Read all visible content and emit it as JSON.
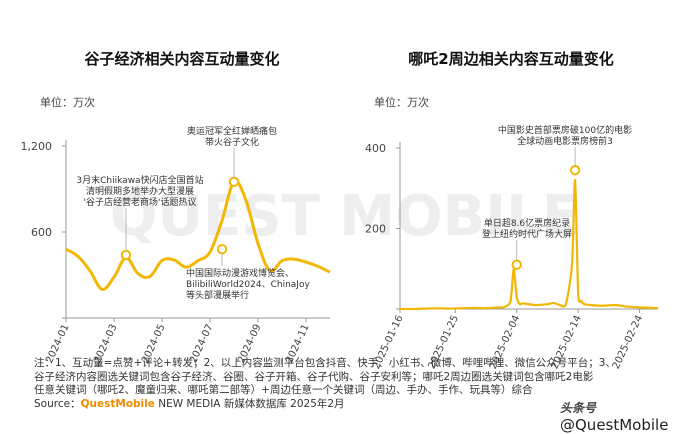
{
  "colors": {
    "line": "#f2b705",
    "axis": "#9a9a9a",
    "annotation": "#333333",
    "brand": "#f08a00",
    "watermark": "#eeeeee"
  },
  "chart_data": [
    {
      "type": "line",
      "title": "谷子经济相关内容互动量变化",
      "unit_label": "单位：万次",
      "ylim": [
        0,
        1200
      ],
      "y_ticks": [
        0,
        600,
        1200
      ],
      "y_tick_labels": [
        "",
        "600",
        "1,200"
      ],
      "x_tick_labels": [
        "2024-01",
        "2024-03",
        "2024-05",
        "2024-07",
        "2024-09",
        "2024-11"
      ],
      "x_tick_positions": [
        0,
        2,
        4,
        6,
        8,
        10
      ],
      "x": [
        0,
        0.5,
        1,
        1.5,
        2,
        2.5,
        3,
        3.5,
        4,
        4.5,
        5,
        5.5,
        6,
        6.5,
        7,
        7.5,
        8,
        8.5,
        9,
        9.5,
        10,
        10.5,
        11
      ],
      "values": [
        480,
        430,
        330,
        200,
        285,
        420,
        310,
        290,
        400,
        405,
        355,
        400,
        460,
        680,
        950,
        820,
        520,
        330,
        400,
        410,
        390,
        360,
        320
      ],
      "annotations": [
        {
          "x": 2.5,
          "y": 440,
          "text": [
            "3月末Chiikawa快闪店全国首站",
            "清明假期多地举办大型漫展",
            "'谷子店经营老商场'话题热议"
          ]
        },
        {
          "x": 7,
          "y": 950,
          "text": [
            "奥运冠军全红婵晒痛包",
            "带火谷子文化"
          ]
        },
        {
          "x": 6.5,
          "y": 480,
          "text": [
            "中国国际动漫游戏博览会、",
            "BilibiliWorld2024、ChinaJoy",
            "等头部漫展举行"
          ]
        }
      ],
      "grid": false
    },
    {
      "type": "line",
      "title": "哪吒2周边相关内容互动量变化",
      "unit_label": "单位：万次",
      "ylim": [
        0,
        400
      ],
      "y_ticks": [
        0,
        200,
        400
      ],
      "y_tick_labels": [
        "",
        "200",
        "400"
      ],
      "x_tick_labels": [
        "2025-01-16",
        "2025-01-25",
        "2025-02-04",
        "2025-02-14",
        "2025-02-24"
      ],
      "x_tick_positions": [
        0,
        9,
        19,
        29,
        39
      ],
      "x": [
        0,
        2,
        4,
        6,
        8,
        10,
        12,
        14,
        16,
        17,
        18,
        18.5,
        19,
        19.5,
        20,
        22,
        24,
        25,
        26,
        27,
        28,
        28.5,
        29,
        29.5,
        30,
        31,
        33,
        35,
        37,
        39,
        41,
        42
      ],
      "values": [
        0,
        0,
        1,
        2,
        1,
        2,
        3,
        2,
        4,
        5,
        20,
        100,
        30,
        12,
        14,
        10,
        12,
        15,
        10,
        12,
        110,
        320,
        40,
        20,
        12,
        10,
        8,
        10,
        6,
        4,
        3,
        2
      ],
      "annotations": [
        {
          "x": 19,
          "y": 110,
          "text": [
            "单日超8.6亿票房纪录",
            "登上纽约时代广场大屏"
          ]
        },
        {
          "x": 28.5,
          "y": 345,
          "text": [
            "中国影史首部票房破100亿的电影",
            "全球动画电影票房榜前3"
          ]
        }
      ],
      "grid": false
    }
  ],
  "notes": {
    "line1": "注：1、互动量=点赞+评论+转发；2、以上内容监测平台包含抖音、快手、小红书、微博、哔哩哔哩、微信公众号平台；3、",
    "line2": "谷子经济内容圈选关键词包含谷子经济、谷圈、谷子开箱、谷子代购、谷子安利等；哪吒2周边圈选关键词包含哪吒2电影",
    "line3": "任意关键词（哪吒2、魔童归来、哪吒第二部等）+周边任意一个关键词（周边、手办、手作、玩具等）综合",
    "source_prefix": "Source：",
    "source_brand": "QuestMobile",
    "source_rest": " NEW MEDIA 新媒体数据库 2025年2月"
  },
  "watermark": {
    "text": "QUEST MOBILE",
    "corner_text": "@QuestMobile",
    "corner_logo": "头条号"
  }
}
